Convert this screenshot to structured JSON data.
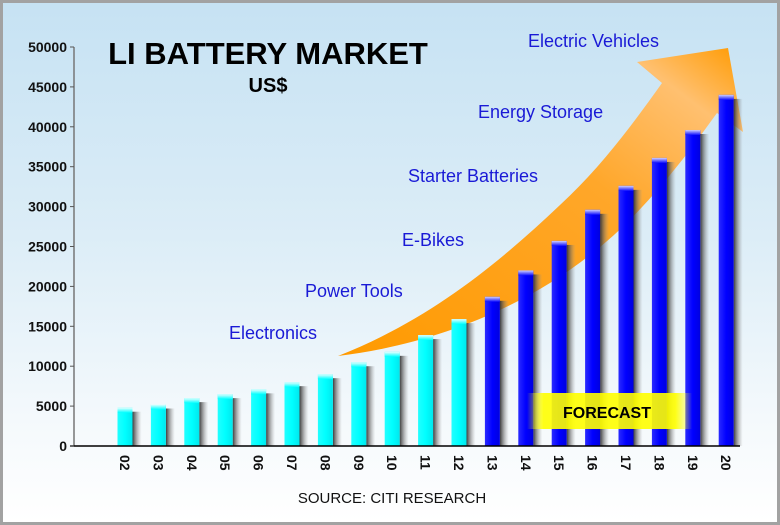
{
  "chart_data": {
    "type": "bar",
    "title": "LI BATTERY MARKET",
    "subtitle": "US$",
    "xlabel": "",
    "ylabel": "",
    "source": "SOURCE: CITI RESEARCH",
    "categories": [
      "02",
      "03",
      "04",
      "05",
      "06",
      "07",
      "08",
      "09",
      "10",
      "11",
      "12",
      "13",
      "14",
      "15",
      "16",
      "17",
      "18",
      "19",
      "20"
    ],
    "values": [
      4800,
      5200,
      6000,
      6500,
      7100,
      8000,
      9000,
      10500,
      11800,
      13900,
      15900,
      18700,
      22000,
      25700,
      29600,
      32600,
      36100,
      39600,
      44000
    ],
    "forecast_start_category": "13",
    "series_colors": {
      "actual": "#00ffff",
      "forecast": "#0000ff"
    },
    "ylim": [
      0,
      50000
    ],
    "yticks": [
      0,
      5000,
      10000,
      15000,
      20000,
      25000,
      30000,
      35000,
      40000,
      45000,
      50000
    ],
    "grid": false,
    "legend": null,
    "annotations": [
      {
        "text": "Electronics"
      },
      {
        "text": "Power Tools"
      },
      {
        "text": "E-Bikes"
      },
      {
        "text": "Starter Batteries"
      },
      {
        "text": "Energy Storage"
      },
      {
        "text": "Electric Vehicles"
      }
    ],
    "forecast_label": "FORECAST",
    "colors": {
      "annotation_text": "#1a1ad6",
      "arrow": "#ff9900",
      "forecast_box": "#ffff00",
      "background_top": "#c6e2f3"
    }
  }
}
